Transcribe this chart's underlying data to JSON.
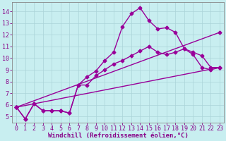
{
  "xlabel": "Windchill (Refroidissement éolien,°C)",
  "ylabel": "",
  "xlim": [
    -0.5,
    23.5
  ],
  "ylim": [
    4.5,
    14.8
  ],
  "xticks": [
    0,
    1,
    2,
    3,
    4,
    5,
    6,
    7,
    8,
    9,
    10,
    11,
    12,
    13,
    14,
    15,
    16,
    17,
    18,
    19,
    20,
    21,
    22,
    23
  ],
  "yticks": [
    5,
    6,
    7,
    8,
    9,
    10,
    11,
    12,
    13,
    14
  ],
  "background_color": "#c8eef0",
  "grid_color": "#aad4d8",
  "line_color": "#990099",
  "line1_x": [
    0,
    1,
    2,
    3,
    4,
    5,
    6,
    7,
    8,
    9,
    10,
    11,
    12,
    13,
    14,
    15,
    16,
    17,
    18,
    19,
    20,
    21,
    22,
    23
  ],
  "line1_y": [
    5.8,
    4.8,
    6.1,
    5.5,
    5.5,
    5.5,
    5.3,
    7.7,
    8.4,
    8.9,
    9.8,
    10.5,
    12.7,
    13.8,
    14.3,
    13.2,
    12.5,
    12.6,
    12.2,
    10.8,
    10.3,
    9.2,
    9.0,
    9.2
  ],
  "line2_x": [
    0,
    1,
    2,
    3,
    4,
    5,
    6,
    7,
    8,
    9,
    10,
    11,
    12,
    13,
    14,
    15,
    16,
    17,
    18,
    19,
    20,
    21,
    22,
    23
  ],
  "line2_y": [
    5.8,
    4.8,
    6.1,
    5.5,
    5.5,
    5.5,
    5.3,
    7.7,
    7.7,
    8.5,
    9.0,
    9.5,
    9.8,
    10.2,
    10.6,
    11.0,
    10.5,
    10.3,
    10.5,
    10.8,
    10.5,
    10.2,
    9.2,
    9.2
  ],
  "line3_x": [
    0,
    23
  ],
  "line3_y": [
    5.8,
    12.2
  ],
  "line4_x": [
    0,
    23
  ],
  "line4_y": [
    5.8,
    9.2
  ],
  "marker": "D",
  "markersize": 2.5,
  "linewidth": 1.0,
  "xlabel_fontsize": 6.5,
  "tick_fontsize": 6.0,
  "font_color": "#880088"
}
